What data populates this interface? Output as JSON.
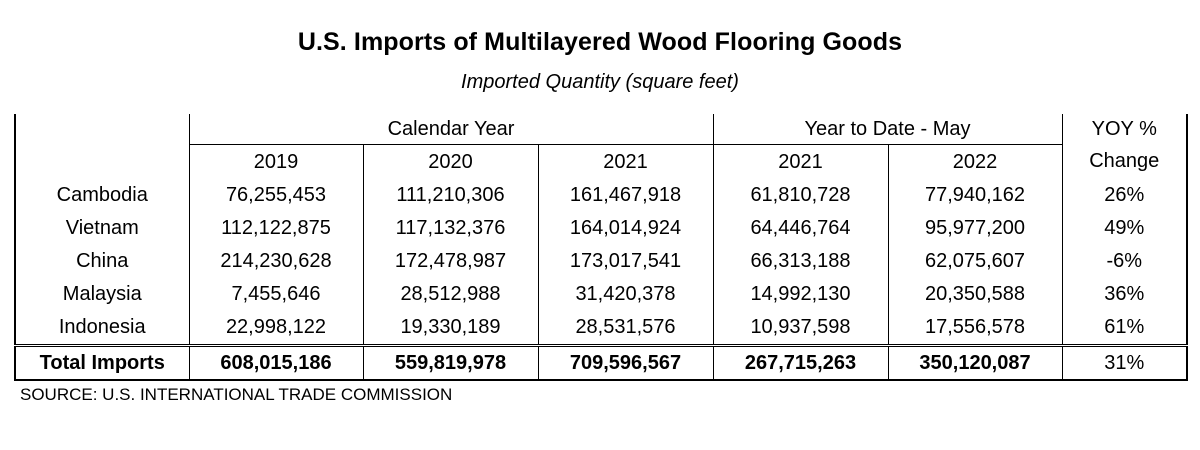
{
  "title": "U.S. Imports of Multilayered Wood Flooring Goods",
  "subtitle": "Imported Quantity (square feet)",
  "table": {
    "group_headers": {
      "calendar_year": "Calendar Year",
      "ytd": "Year to Date - May",
      "yoy_line1": "YOY %",
      "yoy_line2": "Change"
    },
    "year_headers": [
      "2019",
      "2020",
      "2021",
      "2021",
      "2022"
    ],
    "rows": [
      {
        "country": "Cambodia",
        "values": [
          "76,255,453",
          "111,210,306",
          "161,467,918",
          "61,810,728",
          "77,940,162"
        ],
        "yoy": "26%"
      },
      {
        "country": "Vietnam",
        "values": [
          "112,122,875",
          "117,132,376",
          "164,014,924",
          "64,446,764",
          "95,977,200"
        ],
        "yoy": "49%"
      },
      {
        "country": "China",
        "values": [
          "214,230,628",
          "172,478,987",
          "173,017,541",
          "66,313,188",
          "62,075,607"
        ],
        "yoy": "-6%"
      },
      {
        "country": "Malaysia",
        "values": [
          "7,455,646",
          "28,512,988",
          "31,420,378",
          "14,992,130",
          "20,350,588"
        ],
        "yoy": "36%"
      },
      {
        "country": "Indonesia",
        "values": [
          "22,998,122",
          "19,330,189",
          "28,531,576",
          "10,937,598",
          "17,556,578"
        ],
        "yoy": "61%"
      }
    ],
    "total": {
      "label": "Total Imports",
      "values": [
        "608,015,186",
        "559,819,978",
        "709,596,567",
        "267,715,263",
        "350,120,087"
      ],
      "yoy": "31%"
    }
  },
  "source": "SOURCE: U.S. INTERNATIONAL TRADE COMMISSION"
}
